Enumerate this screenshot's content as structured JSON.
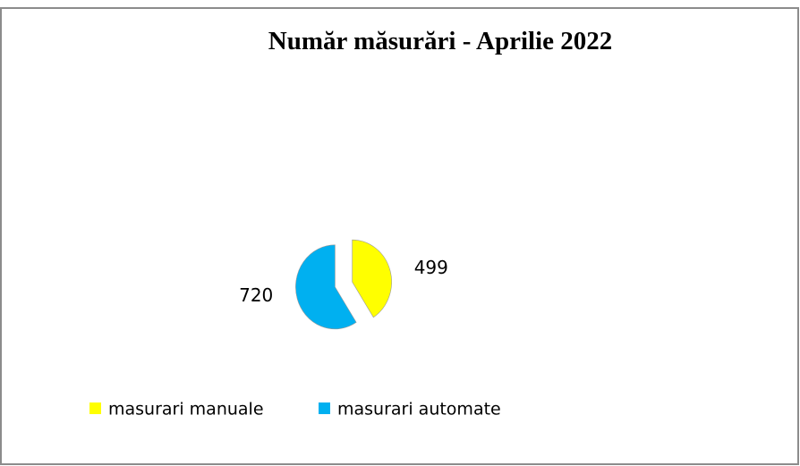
{
  "chart_data": {
    "type": "pie",
    "title": "Număr măsurări - Aprilie 2022",
    "categories": [
      "masurari manuale",
      "masurari automate"
    ],
    "values": [
      499,
      720
    ],
    "colors": [
      "#ffff00",
      "#00b0f0"
    ]
  }
}
